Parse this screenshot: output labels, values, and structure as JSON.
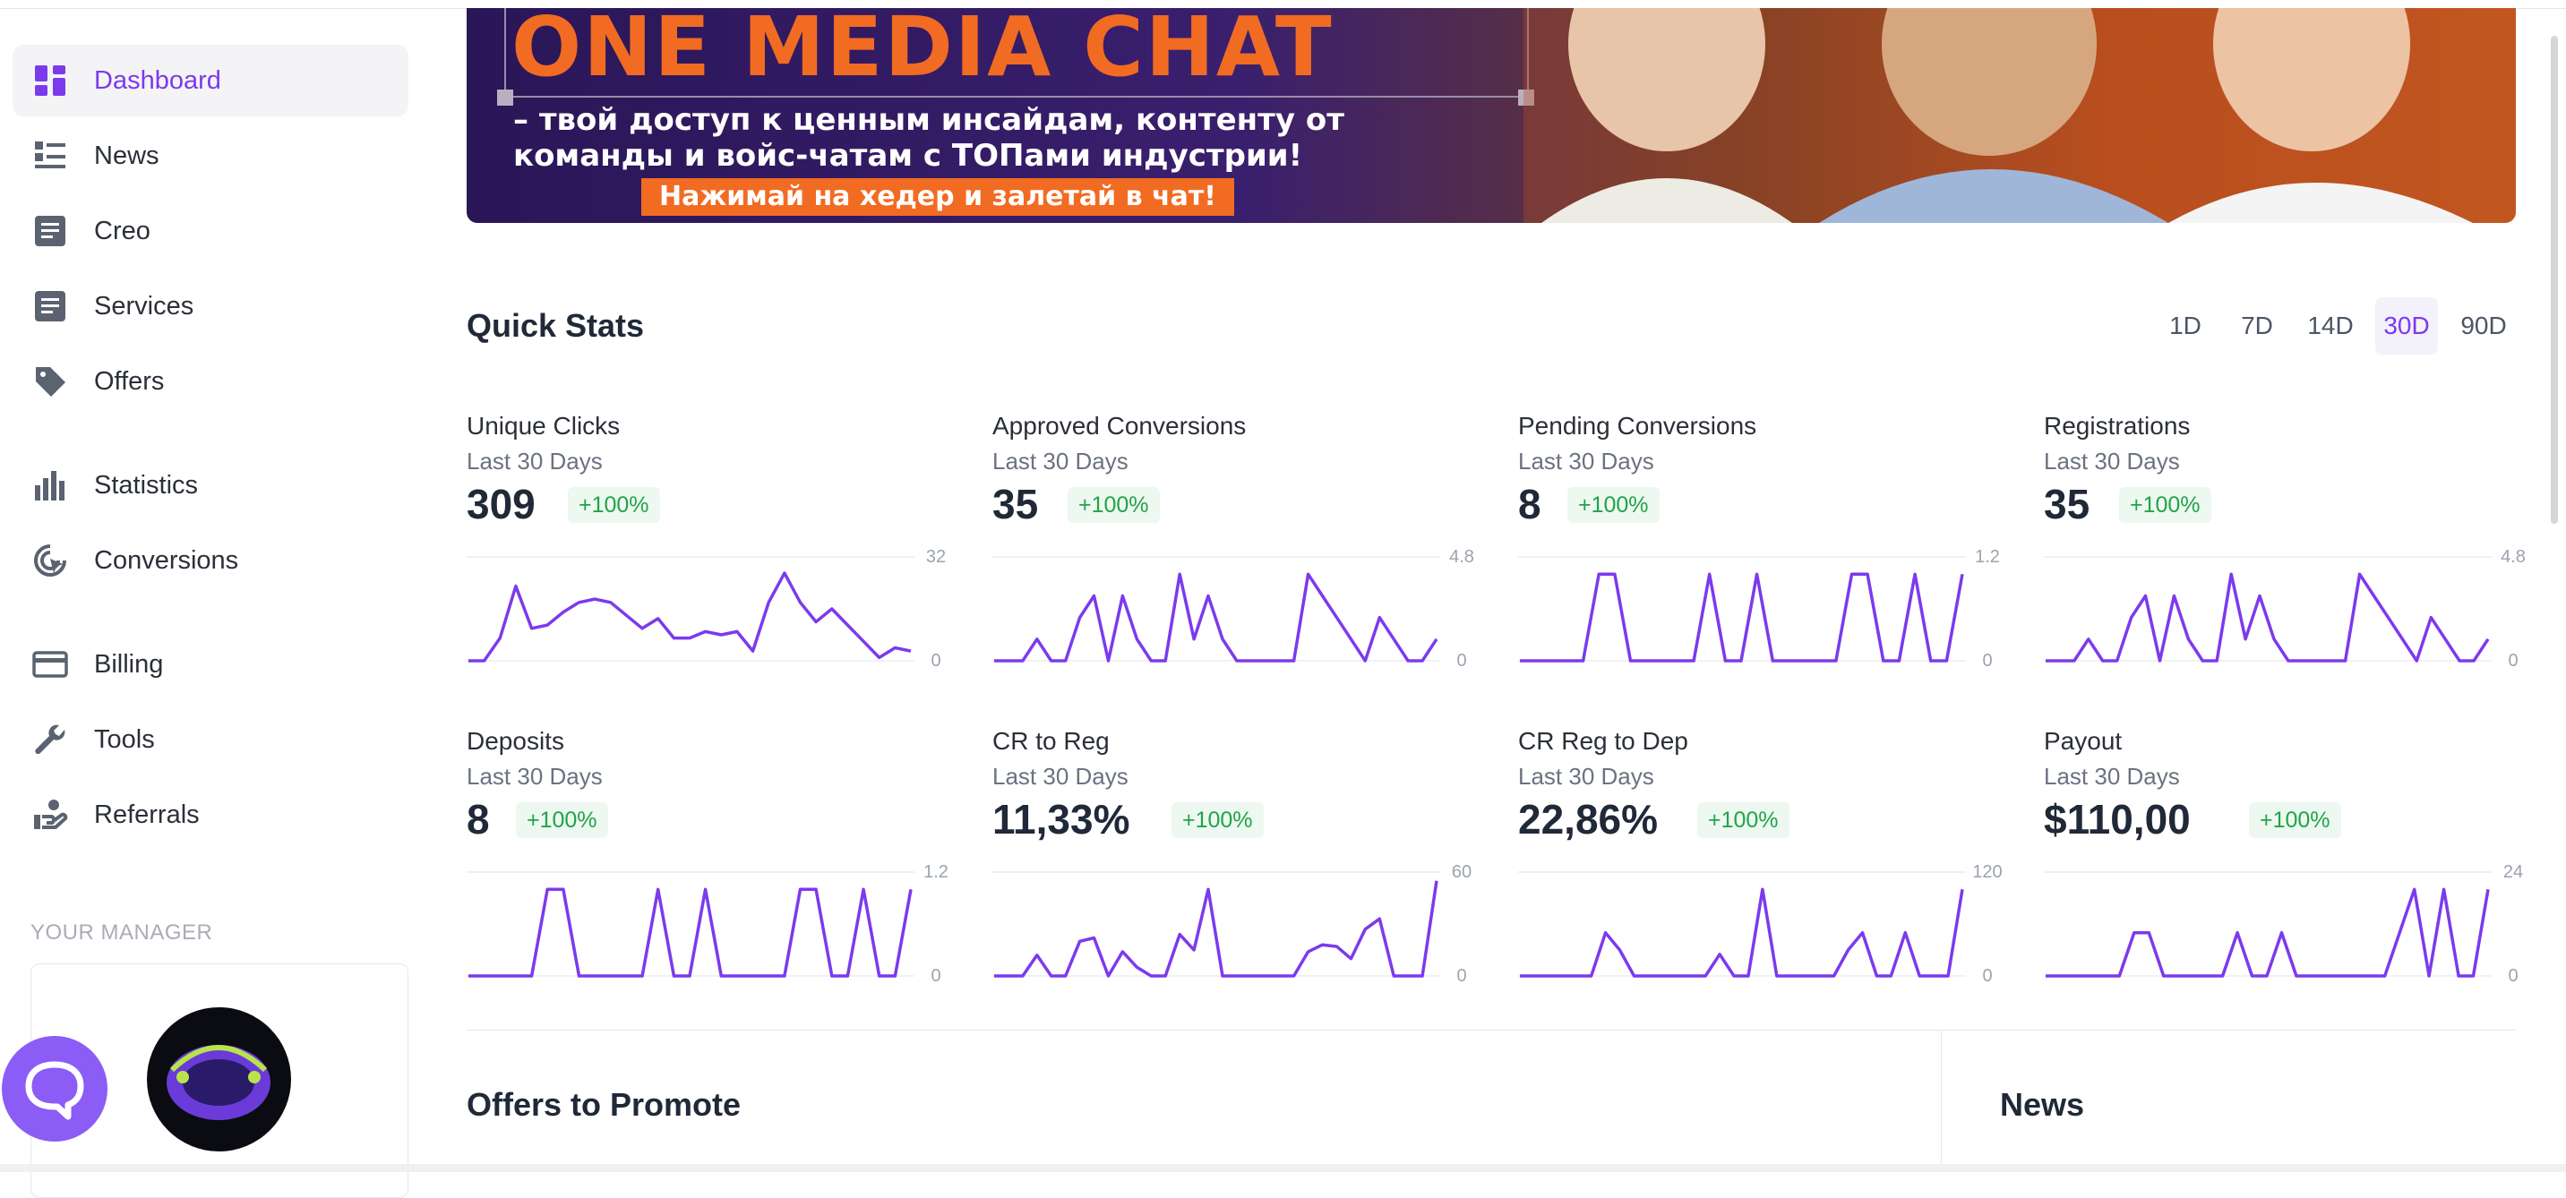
{
  "sidebar": {
    "items": [
      {
        "label": "Dashboard",
        "icon": "dashboard-icon",
        "active": true
      },
      {
        "label": "News",
        "icon": "news-icon"
      },
      {
        "label": "Creo",
        "icon": "creo-icon"
      },
      {
        "label": "Services",
        "icon": "services-icon"
      },
      {
        "label": "Offers",
        "icon": "tag-icon"
      },
      {
        "label": "Statistics",
        "icon": "bar-chart-icon"
      },
      {
        "label": "Conversions",
        "icon": "conversions-icon"
      },
      {
        "label": "Billing",
        "icon": "credit-card-icon"
      },
      {
        "label": "Tools",
        "icon": "wrench-icon"
      },
      {
        "label": "Referrals",
        "icon": "referrals-icon"
      }
    ],
    "manager_title": "YOUR MANAGER"
  },
  "banner": {
    "title": "ONE MEDIA CHAT",
    "line1": "– твой доступ к ценным инсайдам, контенту от",
    "line2": "команды и войс-чатам с ТОПами индустрии!",
    "cta": "Нажимай на хедер и залетай в чат!"
  },
  "quick_stats": {
    "title": "Quick Stats",
    "periods": [
      "1D",
      "7D",
      "14D",
      "30D",
      "90D"
    ],
    "active_period": "30D",
    "accent": "#7c3aed",
    "cards": [
      {
        "title": "Unique Clicks",
        "subtitle": "Last 30 Days",
        "value": "309",
        "change": "+100%",
        "ymax_label": "32",
        "ymin_label": "0",
        "ymax": 32,
        "series": [
          0,
          0,
          7,
          23,
          10,
          11,
          15,
          18,
          19,
          18,
          14,
          10,
          13,
          7,
          7,
          9,
          8,
          9,
          3,
          18,
          27,
          18,
          12,
          16,
          11,
          6,
          1,
          4,
          3
        ]
      },
      {
        "title": "Approved Conversions",
        "subtitle": "Last 30 Days",
        "value": "35",
        "change": "+100%",
        "ymax_label": "4.8",
        "ymin_label": "0",
        "ymax": 4.8,
        "series": [
          0,
          0,
          0,
          1,
          0,
          0,
          2,
          3,
          0,
          3,
          1,
          0,
          0,
          4,
          1,
          3,
          1,
          0,
          0,
          0,
          0,
          0,
          4,
          3,
          2,
          1,
          0,
          2,
          1,
          0,
          0,
          1
        ]
      },
      {
        "title": "Pending Conversions",
        "subtitle": "Last 30 Days",
        "value": "8",
        "change": "+100%",
        "ymax_label": "1.2",
        "ymin_label": "0",
        "ymax": 1.2,
        "series": [
          0,
          0,
          0,
          0,
          0,
          1,
          1,
          0,
          0,
          0,
          0,
          0,
          1,
          0,
          0,
          1,
          0,
          0,
          0,
          0,
          0,
          1,
          1,
          0,
          0,
          1,
          0,
          0,
          1
        ]
      },
      {
        "title": "Registrations",
        "subtitle": "Last 30 Days",
        "value": "35",
        "change": "+100%",
        "ymax_label": "4.8",
        "ymin_label": "0",
        "ymax": 4.8,
        "series": [
          0,
          0,
          0,
          1,
          0,
          0,
          2,
          3,
          0,
          3,
          1,
          0,
          0,
          4,
          1,
          3,
          1,
          0,
          0,
          0,
          0,
          0,
          4,
          3,
          2,
          1,
          0,
          2,
          1,
          0,
          0,
          1
        ]
      },
      {
        "title": "Deposits",
        "subtitle": "Last 30 Days",
        "value": "8",
        "change": "+100%",
        "ymax_label": "1.2",
        "ymin_label": "0",
        "ymax": 1.2,
        "series": [
          0,
          0,
          0,
          0,
          0,
          1,
          1,
          0,
          0,
          0,
          0,
          0,
          1,
          0,
          0,
          1,
          0,
          0,
          0,
          0,
          0,
          1,
          1,
          0,
          0,
          1,
          0,
          0,
          1
        ]
      },
      {
        "title": "CR to Reg",
        "subtitle": "Last 30 Days",
        "value": "11,33%",
        "change": "+100%",
        "ymax_label": "60",
        "ymin_label": "0",
        "ymax": 60,
        "series": [
          0,
          0,
          0,
          12,
          0,
          0,
          20,
          22,
          0,
          14,
          5,
          0,
          0,
          24,
          15,
          50,
          0,
          0,
          0,
          0,
          0,
          0,
          14,
          18,
          17,
          10,
          27,
          33,
          0,
          0,
          0,
          55
        ]
      },
      {
        "title": "CR Reg to Dep",
        "subtitle": "Last 30 Days",
        "value": "22,86%",
        "change": "+100%",
        "ymax_label": "120",
        "ymin_label": "0",
        "ymax": 120,
        "series": [
          0,
          0,
          0,
          0,
          0,
          0,
          50,
          30,
          0,
          0,
          0,
          0,
          0,
          0,
          25,
          0,
          0,
          100,
          0,
          0,
          0,
          0,
          0,
          30,
          50,
          0,
          0,
          50,
          0,
          0,
          0,
          100
        ]
      },
      {
        "title": "Payout",
        "subtitle": "Last 30 Days",
        "value": "$110,00",
        "change": "+100%",
        "ymax_label": "24",
        "ymin_label": "0",
        "ymax": 24,
        "series": [
          0,
          0,
          0,
          0,
          0,
          0,
          10,
          10,
          0,
          0,
          0,
          0,
          0,
          10,
          0,
          0,
          10,
          0,
          0,
          0,
          0,
          0,
          0,
          0,
          10,
          20,
          0,
          20,
          0,
          0,
          20
        ]
      }
    ]
  },
  "sections": {
    "offers_title": "Offers to Promote",
    "news_title": "News"
  }
}
